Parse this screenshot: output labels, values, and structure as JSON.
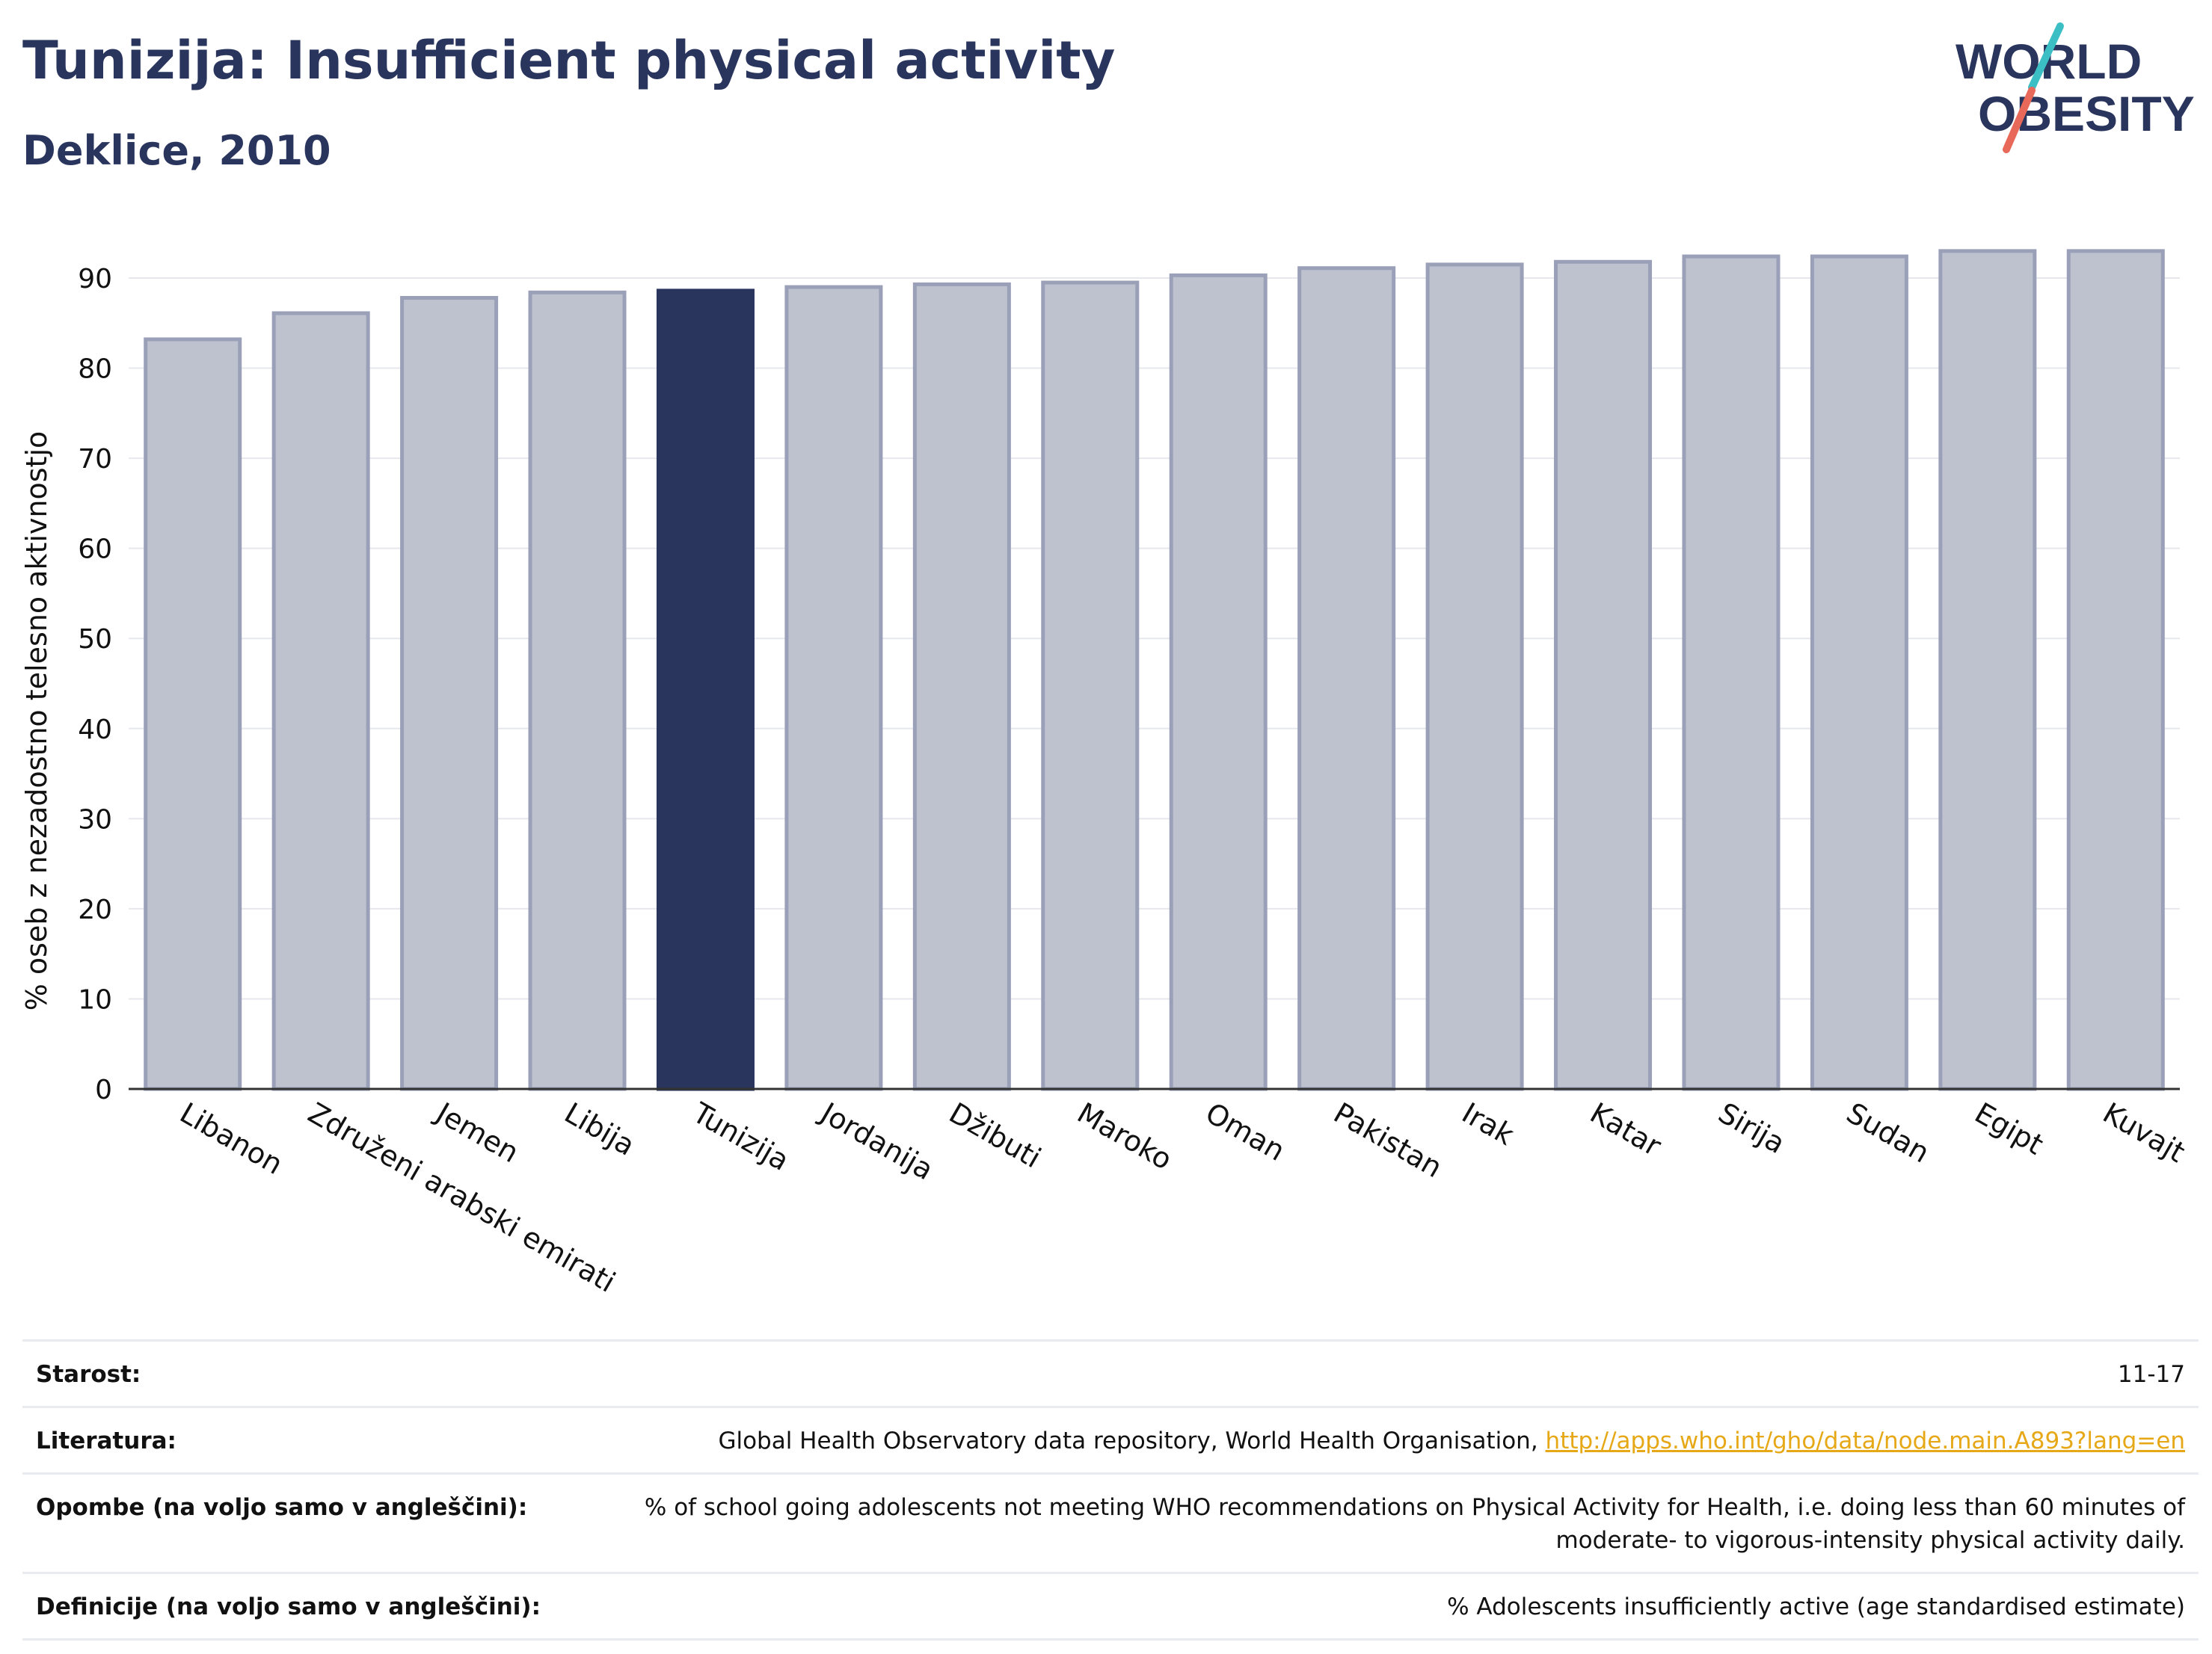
{
  "header": {
    "title": "Tunizija: Insufficient physical activity",
    "subtitle": "Deklice, 2010"
  },
  "logo": {
    "line1": "WORLD",
    "line2": "OBESITY",
    "accent_colors": [
      "#3bbfc4",
      "#e8685a"
    ]
  },
  "chart_data": {
    "type": "bar",
    "categories": [
      "Libanon",
      "Združeni arabski emirati",
      "Jemen",
      "Libija",
      "Tunizija",
      "Jordanija",
      "Džibuti",
      "Maroko",
      "Oman",
      "Pakistan",
      "Irak",
      "Katar",
      "Sirija",
      "Sudan",
      "Egipt",
      "Kuvajt"
    ],
    "values": [
      83.2,
      86.1,
      87.8,
      88.4,
      88.6,
      89.0,
      89.3,
      89.5,
      90.3,
      91.1,
      91.5,
      91.8,
      92.4,
      92.4,
      93.0,
      93.0
    ],
    "highlight": "Tunizija",
    "ylabel": "% oseb z nezadostno telesno aktivnostjo",
    "ylim": [
      0,
      96
    ],
    "yticks": [
      0,
      10,
      20,
      30,
      40,
      50,
      60,
      70,
      80,
      90
    ],
    "grid": true,
    "colors": {
      "bar": "#bec2cf",
      "bar_edge": "#9aa0b8",
      "highlight": "#2a355e"
    }
  },
  "footer": {
    "rows": [
      {
        "label": "Starost:",
        "value": "11-17"
      },
      {
        "label": "Literatura:",
        "value": "Global Health Observatory data repository, World Health Organisation, ",
        "link": "http://apps.who.int/gho/data/node.main.A893?lang=en"
      },
      {
        "label": "Opombe (na voljo samo v angleščini):",
        "value": "% of school going adolescents not meeting WHO recommendations on Physical Activity for Health, i.e. doing less than 60 minutes of moderate- to vigorous-intensity physical activity daily."
      },
      {
        "label": "Definicije (na voljo samo v angleščini):",
        "value": "% Adolescents insufficiently active (age standardised estimate)"
      }
    ]
  }
}
